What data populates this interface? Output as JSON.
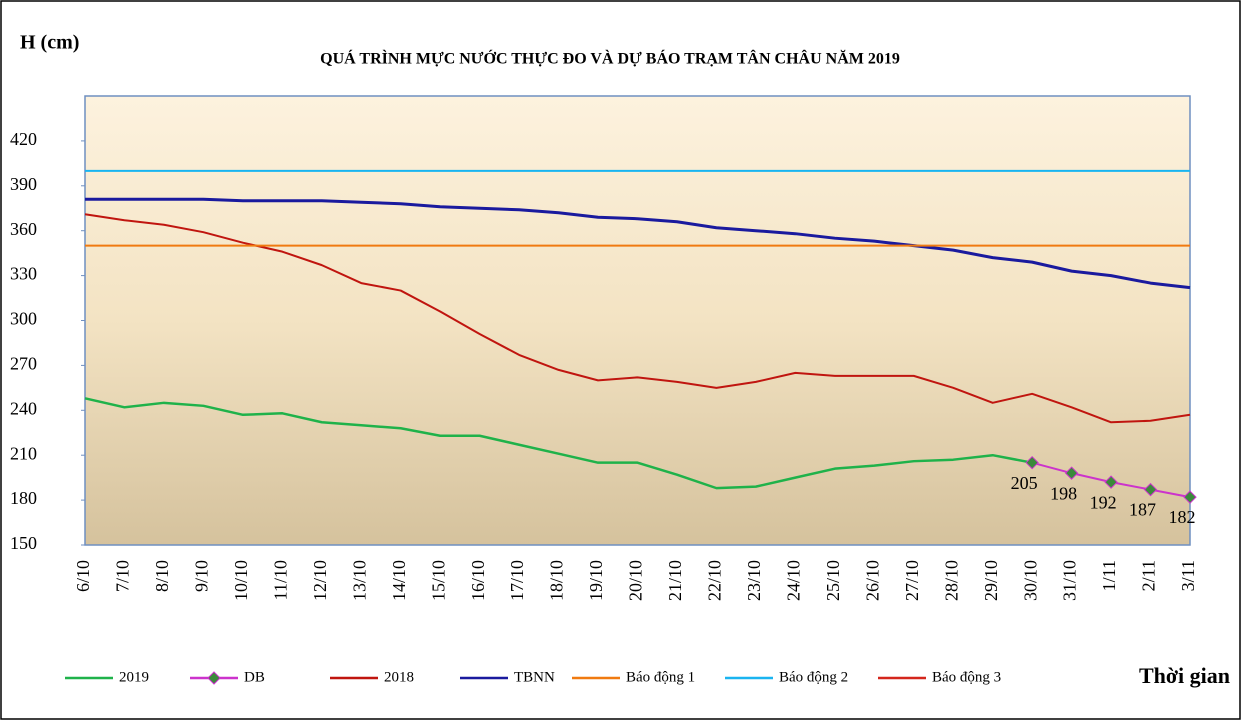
{
  "chart_data": {
    "type": "line",
    "title": "QUÁ TRÌNH MỰC NƯỚC THỰC ĐO VÀ DỰ BÁO TRẠM TÂN CHÂU NĂM 2019",
    "y_label": "H (cm)",
    "x_label": "Thời gian",
    "categories": [
      "6/10",
      "7/10",
      "8/10",
      "9/10",
      "10/10",
      "11/10",
      "12/10",
      "13/10",
      "14/10",
      "15/10",
      "16/10",
      "17/10",
      "18/10",
      "19/10",
      "20/10",
      "21/10",
      "22/10",
      "23/10",
      "24/10",
      "25/10",
      "26/10",
      "27/10",
      "28/10",
      "29/10",
      "30/10",
      "31/10",
      "1/11",
      "2/11",
      "3/11"
    ],
    "ylim": [
      150,
      450
    ],
    "yticks": [
      150,
      180,
      210,
      240,
      270,
      300,
      330,
      360,
      390,
      420
    ],
    "series": [
      {
        "name": "2019",
        "color": "#1fb24a",
        "values": [
          248,
          242,
          245,
          243,
          237,
          238,
          232,
          230,
          228,
          223,
          223,
          217,
          211,
          205,
          205,
          197,
          188,
          189,
          195,
          201,
          203,
          206,
          207,
          210,
          205,
          null,
          null,
          null,
          null
        ]
      },
      {
        "name": "DB",
        "color": "#cc33cc",
        "marker_color": "#3a8a3a",
        "values": [
          null,
          null,
          null,
          null,
          null,
          null,
          null,
          null,
          null,
          null,
          null,
          null,
          null,
          null,
          null,
          null,
          null,
          null,
          null,
          null,
          null,
          null,
          null,
          null,
          205,
          198,
          192,
          187,
          182
        ]
      },
      {
        "name": "2018",
        "color": "#c0150f",
        "values": [
          371,
          367,
          364,
          359,
          352,
          346,
          337,
          325,
          320,
          306,
          291,
          277,
          267,
          260,
          262,
          259,
          255,
          259,
          265,
          263,
          263,
          263,
          255,
          245,
          251,
          242,
          232,
          233,
          237
        ]
      },
      {
        "name": "TBNN",
        "color": "#1a1a9e",
        "values": [
          381,
          381,
          381,
          381,
          380,
          380,
          380,
          379,
          378,
          376,
          375,
          374,
          372,
          369,
          368,
          366,
          362,
          360,
          358,
          355,
          353,
          350,
          347,
          342,
          339,
          333,
          330,
          325,
          322
        ]
      },
      {
        "name": "Báo động 1",
        "color": "#f07a10",
        "values": [
          350,
          350,
          350,
          350,
          350,
          350,
          350,
          350,
          350,
          350,
          350,
          350,
          350,
          350,
          350,
          350,
          350,
          350,
          350,
          350,
          350,
          350,
          350,
          350,
          350,
          350,
          350,
          350,
          350
        ]
      },
      {
        "name": "Báo động 2",
        "color": "#1ab4f0",
        "values": [
          400,
          400,
          400,
          400,
          400,
          400,
          400,
          400,
          400,
          400,
          400,
          400,
          400,
          400,
          400,
          400,
          400,
          400,
          400,
          400,
          400,
          400,
          400,
          400,
          400,
          400,
          400,
          400,
          400
        ]
      },
      {
        "name": "Báo động 3",
        "color": "#d4261c",
        "values": [
          null,
          null,
          null,
          null,
          null,
          null,
          null,
          null,
          null,
          null,
          null,
          null,
          null,
          null,
          null,
          null,
          null,
          null,
          null,
          null,
          null,
          null,
          null,
          null,
          null,
          null,
          null,
          null,
          null
        ]
      }
    ]
  }
}
